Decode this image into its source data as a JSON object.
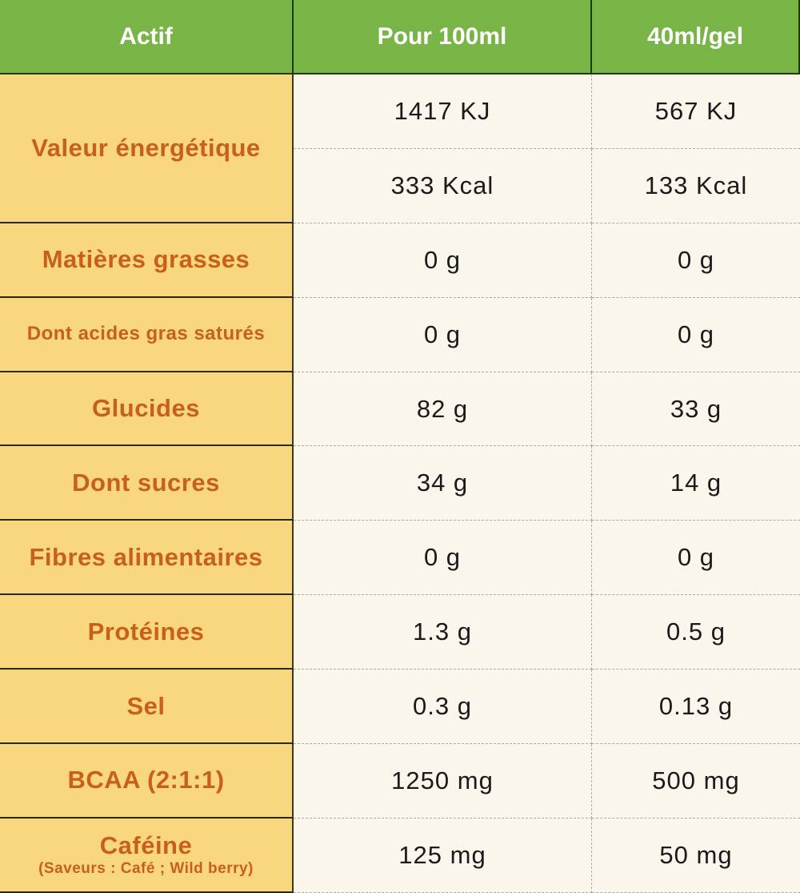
{
  "header": {
    "col1": "Actif",
    "col2": "Pour 100ml",
    "col3": "40ml/gel"
  },
  "rows": [
    {
      "label": "Valeur énergétique",
      "values": [
        [
          "1417 KJ",
          "567 KJ"
        ],
        [
          "333 Kcal",
          "133 Kcal"
        ]
      ]
    },
    {
      "label": "Matières grasses",
      "per100": "0 g",
      "perGel": "0 g"
    },
    {
      "label": "Dont acides gras saturés",
      "per100": "0 g",
      "perGel": "0 g"
    },
    {
      "label": "Glucides",
      "per100": "82 g",
      "perGel": "33 g"
    },
    {
      "label": "Dont sucres",
      "per100": "34 g",
      "perGel": "14 g"
    },
    {
      "label": "Fibres alimentaires",
      "per100": "0 g",
      "perGel": "0 g"
    },
    {
      "label": "Protéines",
      "per100": "1.3 g",
      "perGel": "0.5 g"
    },
    {
      "label": "Sel",
      "per100": "0.3 g",
      "perGel": "0.13 g"
    },
    {
      "label": "BCAA (2:1:1)",
      "per100": "1250 mg",
      "perGel": "500 mg"
    },
    {
      "label": "Caféine",
      "sublabel": "(Saveurs : Café ; Wild berry)",
      "per100": "125 mg",
      "perGel": "50 mg"
    }
  ],
  "colors": {
    "header": "#78b446",
    "label_bg": "#f8d77e",
    "label_text": "#c8601c",
    "value_bg": "#faf6ec"
  }
}
